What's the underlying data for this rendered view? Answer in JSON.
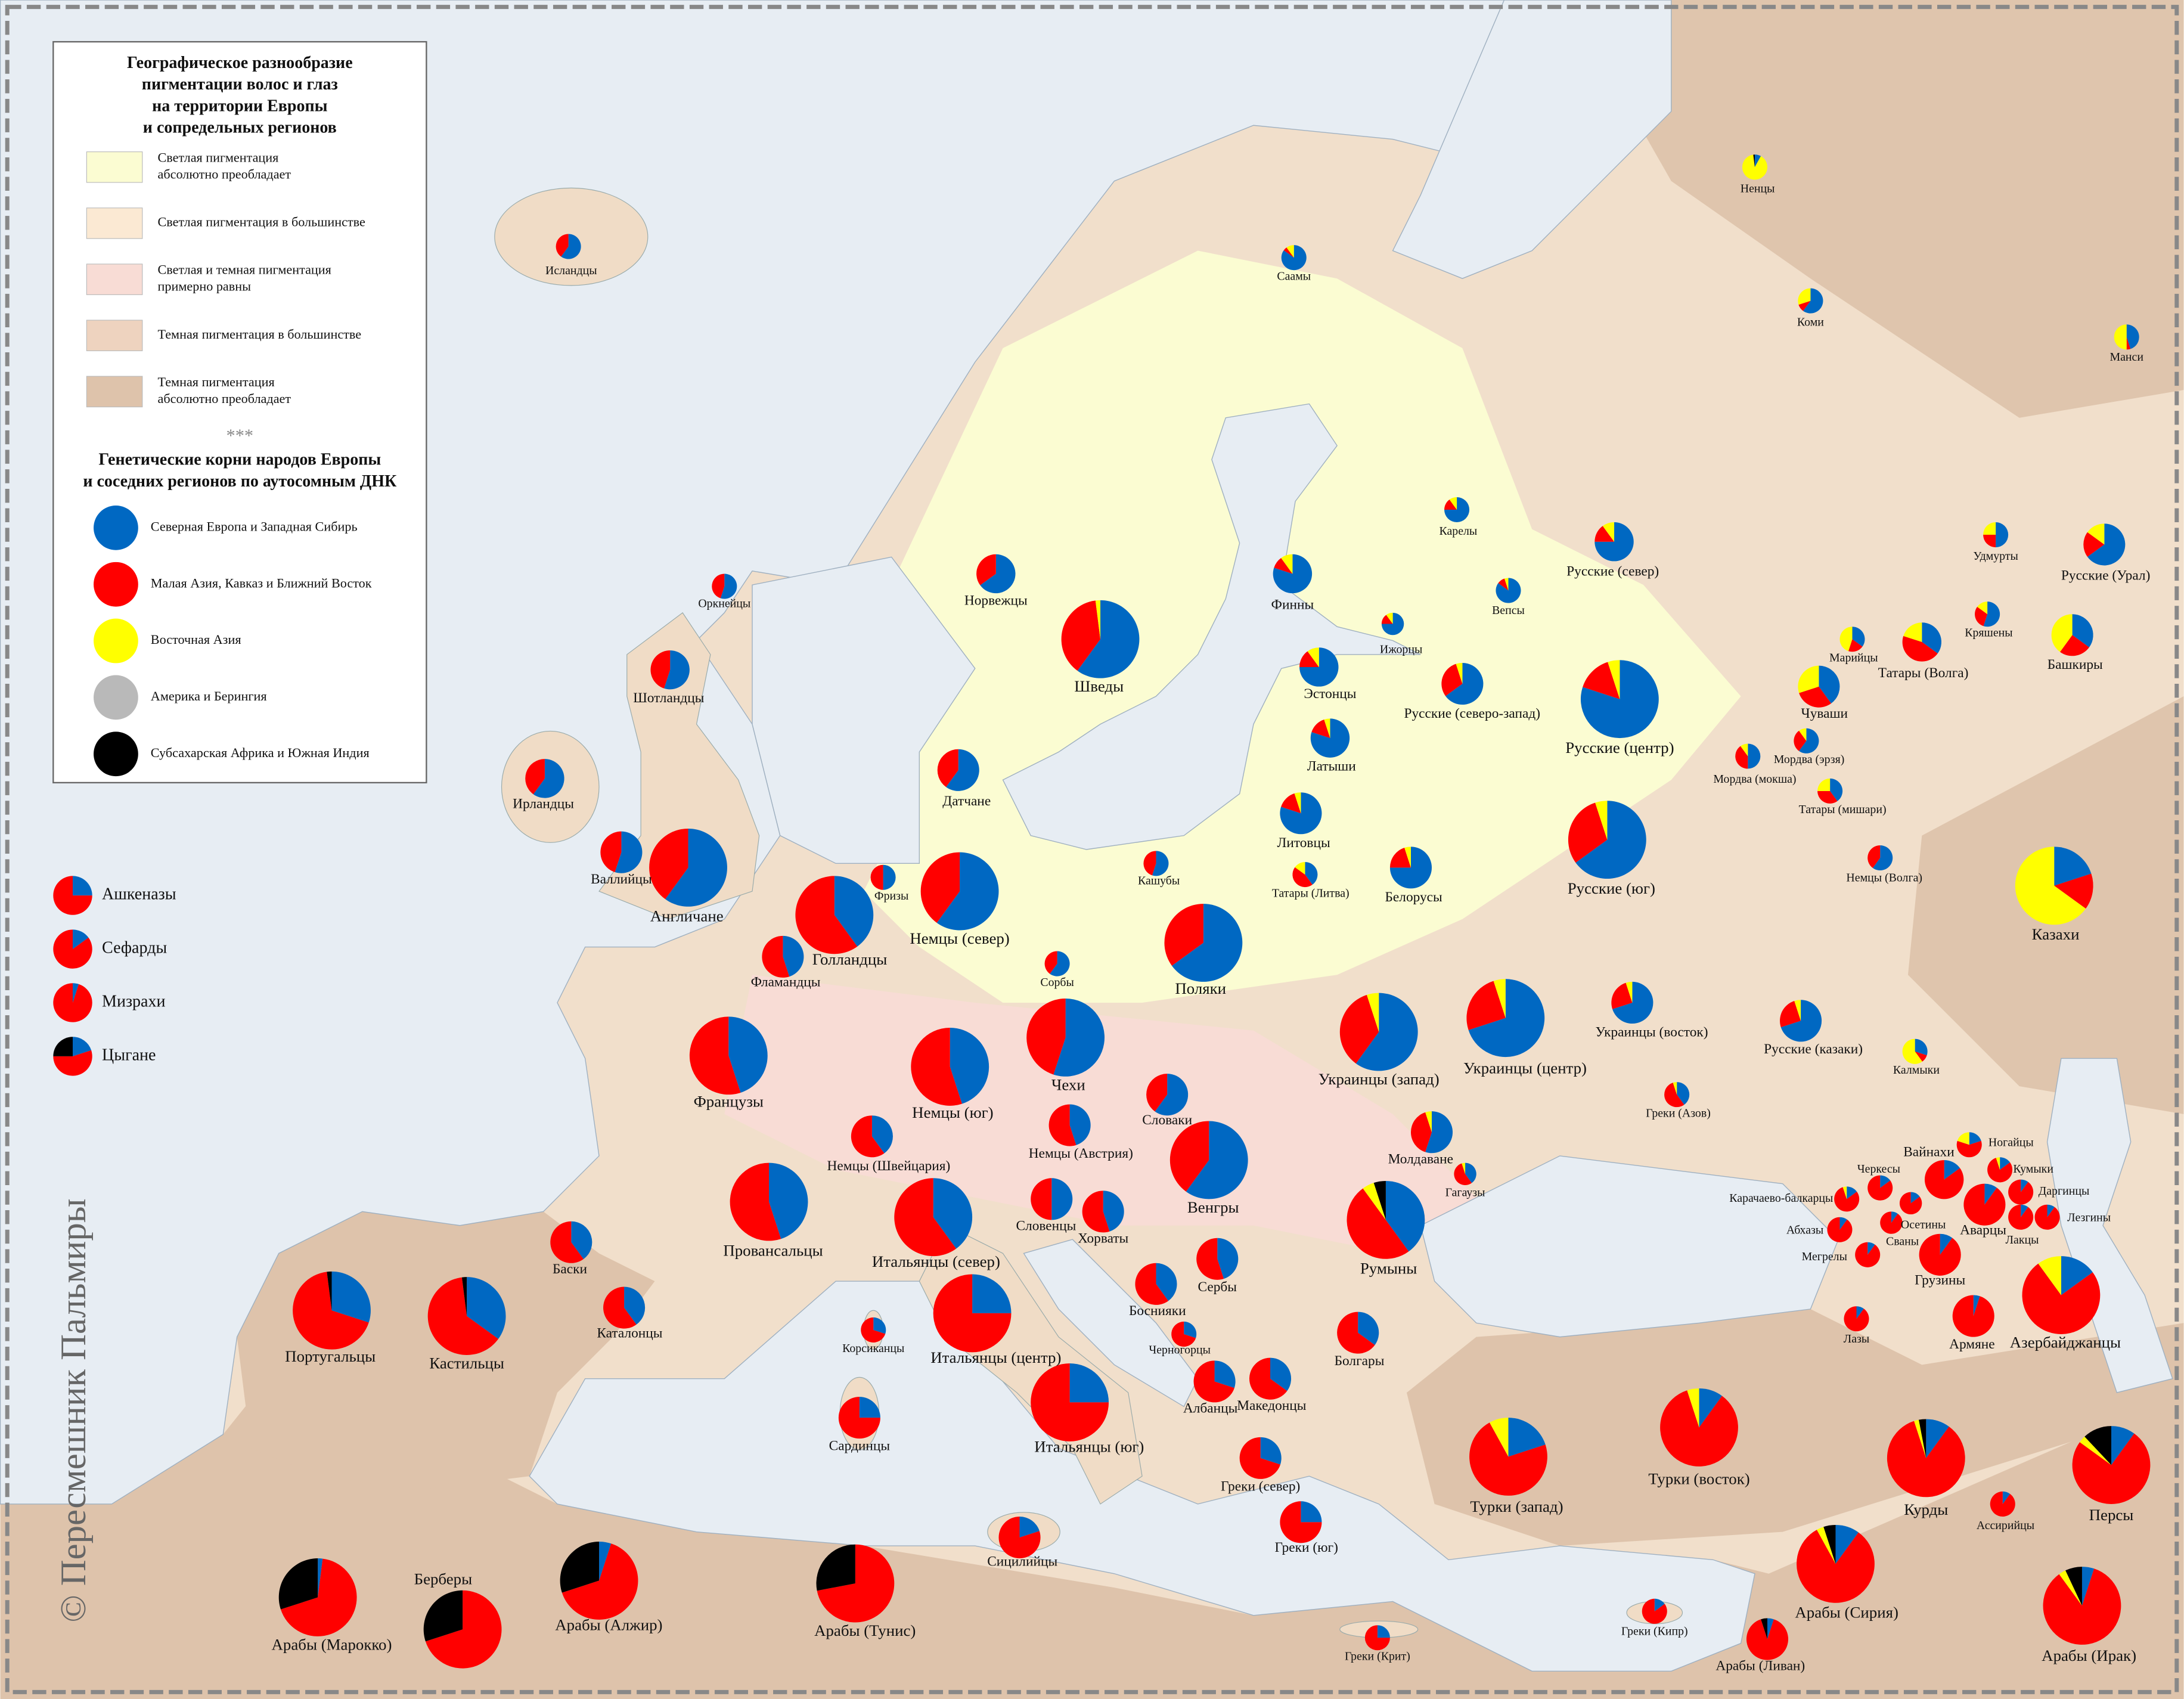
{
  "legend": {
    "title": [
      "Географическое разнообразие",
      "пигментации волос и глаз",
      "на территории Европы",
      "и сопредельных регионов"
    ],
    "pigmentation": [
      {
        "label": [
          "Светлая пигментация",
          "абсолютно преобладает"
        ],
        "color": "#fbfcd2"
      },
      {
        "label": [
          "Светлая пигментация в большинстве"
        ],
        "color": "#fbe9d3"
      },
      {
        "label": [
          "Светлая и темная пигментация",
          "примерно равны"
        ],
        "color": "#f8dcd5"
      },
      {
        "label": [
          "Темная пигментация в большинстве"
        ],
        "color": "#eed3bf"
      },
      {
        "label": [
          "Темная пигментация",
          "абсолютно преобладает"
        ],
        "color": "#dec3ab"
      }
    ],
    "separator": "***",
    "genetics_title": [
      "Генетические корни народов Европы",
      "и соседних регионов по аутосомным ДНК"
    ],
    "components": [
      {
        "label": "Северная Европа и Западная Сибирь",
        "color": "#0068c2"
      },
      {
        "label": "Малая Азия, Кавказ и Ближний Восток",
        "color": "#ff0000"
      },
      {
        "label": "Восточная Азия",
        "color": "#ffff00"
      },
      {
        "label": "Америка и Берингия",
        "color": "#b9b9b9"
      },
      {
        "label": "Субсахарская Африка и Южная Индия",
        "color": "#000000"
      }
    ]
  },
  "groups": [
    {
      "name": "Исландцы",
      "values": [
        60,
        40,
        0,
        0,
        0
      ]
    },
    {
      "name": "Саамы",
      "values": [
        85,
        5,
        10,
        0,
        0
      ]
    },
    {
      "name": "Ненцы",
      "values": [
        8,
        0,
        90,
        0,
        2
      ]
    },
    {
      "name": "Коми",
      "values": [
        60,
        10,
        30,
        0,
        0
      ]
    },
    {
      "name": "Манси",
      "values": [
        45,
        5,
        50,
        0,
        0
      ]
    },
    {
      "name": "Карелы",
      "values": [
        75,
        15,
        10,
        0,
        0
      ]
    },
    {
      "name": "Вепсы",
      "values": [
        85,
        10,
        5,
        0,
        0
      ]
    },
    {
      "name": "Русские (север)",
      "values": [
        75,
        15,
        10,
        0,
        0
      ]
    },
    {
      "name": "Удмурты",
      "values": [
        50,
        25,
        25,
        0,
        0
      ]
    },
    {
      "name": "Русские (Урал)",
      "values": [
        65,
        20,
        15,
        0,
        0
      ]
    },
    {
      "name": "Оркнейцы",
      "values": [
        55,
        45,
        0,
        0,
        0
      ]
    },
    {
      "name": "Норвежцы",
      "values": [
        65,
        35,
        0,
        0,
        0
      ]
    },
    {
      "name": "Финны",
      "values": [
        80,
        10,
        10,
        0,
        0
      ]
    },
    {
      "name": "Ижорцы",
      "values": [
        75,
        15,
        10,
        0,
        0
      ]
    },
    {
      "name": "Шведы",
      "values": [
        60,
        38,
        2,
        0,
        0
      ]
    },
    {
      "name": "Кряшены",
      "values": [
        55,
        30,
        15,
        0,
        0
      ]
    },
    {
      "name": "Башкиры",
      "values": [
        35,
        25,
        40,
        0,
        0
      ]
    },
    {
      "name": "Марийцы",
      "values": [
        35,
        20,
        45,
        0,
        0
      ]
    },
    {
      "name": "Татары (Волга)",
      "values": [
        35,
        45,
        20,
        0,
        0
      ]
    },
    {
      "name": "Шотландцы",
      "values": [
        55,
        45,
        0,
        0,
        0
      ]
    },
    {
      "name": "Эстонцы",
      "values": [
        75,
        15,
        10,
        0,
        0
      ]
    },
    {
      "name": "Русские (северо-запад)",
      "values": [
        65,
        30,
        5,
        0,
        0
      ]
    },
    {
      "name": "Русские (центр)",
      "values": [
        80,
        15,
        5,
        0,
        0
      ]
    },
    {
      "name": "Чуваши",
      "values": [
        40,
        30,
        30,
        0,
        0
      ]
    },
    {
      "name": "Латыши",
      "values": [
        80,
        15,
        5,
        0,
        0
      ]
    },
    {
      "name": "Мордва (эрзя)",
      "values": [
        60,
        30,
        10,
        0,
        0
      ]
    },
    {
      "name": "Мордва (мокша)",
      "values": [
        50,
        40,
        10,
        0,
        0
      ]
    },
    {
      "name": "Датчане",
      "values": [
        60,
        40,
        0,
        0,
        0
      ]
    },
    {
      "name": "Ирландцы",
      "values": [
        60,
        40,
        0,
        0,
        0
      ]
    },
    {
      "name": "Татары (мишари)",
      "values": [
        40,
        35,
        25,
        0,
        0
      ]
    },
    {
      "name": "Литовцы",
      "values": [
        80,
        15,
        5,
        0,
        0
      ]
    },
    {
      "name": "Русские (юг)",
      "values": [
        65,
        30,
        5,
        0,
        0
      ]
    },
    {
      "name": "Валлийцы",
      "values": [
        55,
        45,
        0,
        0,
        0
      ]
    },
    {
      "name": "Англичане",
      "values": [
        60,
        40,
        0,
        0,
        0
      ]
    },
    {
      "name": "Фризы",
      "values": [
        50,
        50,
        0,
        0,
        0
      ]
    },
    {
      "name": "Немцы (север)",
      "values": [
        60,
        40,
        0,
        0,
        0
      ]
    },
    {
      "name": "Кашубы",
      "values": [
        55,
        45,
        0,
        0,
        0
      ]
    },
    {
      "name": "Татары (Литва)",
      "values": [
        40,
        45,
        15,
        0,
        0
      ]
    },
    {
      "name": "Белорусы",
      "values": [
        75,
        20,
        5,
        0,
        0
      ]
    },
    {
      "name": "Немцы (Волга)",
      "values": [
        60,
        40,
        0,
        0,
        0
      ]
    },
    {
      "name": "Казахи",
      "values": [
        20,
        15,
        65,
        0,
        0
      ]
    },
    {
      "name": "Голландцы",
      "values": [
        40,
        60,
        0,
        0,
        0
      ]
    },
    {
      "name": "Фламандцы",
      "values": [
        45,
        55,
        0,
        0,
        0
      ]
    },
    {
      "name": "Сорбы",
      "values": [
        60,
        40,
        0,
        0,
        0
      ]
    },
    {
      "name": "Поляки",
      "values": [
        65,
        35,
        0,
        0,
        0
      ]
    },
    {
      "name": "Украинцы (восток)",
      "values": [
        70,
        25,
        5,
        0,
        0
      ]
    },
    {
      "name": "Французы",
      "values": [
        45,
        55,
        0,
        0,
        0
      ]
    },
    {
      "name": "Чехи",
      "values": [
        55,
        45,
        0,
        0,
        0
      ]
    },
    {
      "name": "Немцы (юг)",
      "values": [
        45,
        55,
        0,
        0,
        0
      ]
    },
    {
      "name": "Украинцы (запад)",
      "values": [
        60,
        35,
        5,
        0,
        0
      ]
    },
    {
      "name": "Украинцы (центр)",
      "values": [
        70,
        25,
        5,
        0,
        0
      ]
    },
    {
      "name": "Русские (казаки)",
      "values": [
        70,
        25,
        5,
        0,
        0
      ]
    },
    {
      "name": "Калмыки",
      "values": [
        30,
        10,
        60,
        0,
        0
      ]
    },
    {
      "name": "Словаки",
      "values": [
        60,
        40,
        0,
        0,
        0
      ]
    },
    {
      "name": "Греки (Азов)",
      "values": [
        40,
        55,
        5,
        0,
        0
      ]
    },
    {
      "name": "Немцы (Швейцария)",
      "values": [
        40,
        60,
        0,
        0,
        0
      ]
    },
    {
      "name": "Немцы (Австрия)",
      "values": [
        45,
        55,
        0,
        0,
        0
      ]
    },
    {
      "name": "Венгры",
      "values": [
        60,
        40,
        0,
        0,
        0
      ]
    },
    {
      "name": "Молдаване",
      "values": [
        55,
        40,
        5,
        0,
        0
      ]
    },
    {
      "name": "Провансальцы",
      "values": [
        45,
        55,
        0,
        0,
        0
      ]
    },
    {
      "name": "Итальянцы (север)",
      "values": [
        40,
        60,
        0,
        0,
        0
      ]
    },
    {
      "name": "Словенцы",
      "values": [
        50,
        50,
        0,
        0,
        0
      ]
    },
    {
      "name": "Хорваты",
      "values": [
        45,
        55,
        0,
        0,
        0
      ]
    },
    {
      "name": "Гагаузы",
      "values": [
        40,
        55,
        5,
        0,
        0
      ]
    },
    {
      "name": "Румыны",
      "values": [
        40,
        50,
        5,
        0,
        5
      ]
    },
    {
      "name": "Баски",
      "values": [
        40,
        60,
        0,
        0,
        0
      ]
    },
    {
      "name": "Португальцы",
      "values": [
        30,
        68,
        0,
        0,
        2
      ]
    },
    {
      "name": "Кастильцы",
      "values": [
        35,
        63,
        0,
        0,
        2
      ]
    },
    {
      "name": "Каталонцы",
      "values": [
        40,
        60,
        0,
        0,
        0
      ]
    },
    {
      "name": "Боснияки",
      "values": [
        40,
        60,
        0,
        0,
        0
      ]
    },
    {
      "name": "Сербы",
      "values": [
        45,
        55,
        0,
        0,
        0
      ]
    },
    {
      "name": "Итальянцы (центр)",
      "values": [
        25,
        75,
        0,
        0,
        0
      ]
    },
    {
      "name": "Корсиканцы",
      "values": [
        30,
        70,
        0,
        0,
        0
      ]
    },
    {
      "name": "Черногорцы",
      "values": [
        30,
        70,
        0,
        0,
        0
      ]
    },
    {
      "name": "Болгары",
      "values": [
        35,
        65,
        0,
        0,
        0
      ]
    },
    {
      "name": "Сардинцы",
      "values": [
        25,
        75,
        0,
        0,
        0
      ]
    },
    {
      "name": "Албанцы",
      "values": [
        30,
        70,
        0,
        0,
        0
      ]
    },
    {
      "name": "Македонцы",
      "values": [
        35,
        65,
        0,
        0,
        0
      ]
    },
    {
      "name": "Итальянцы (юг)",
      "values": [
        25,
        75,
        0,
        0,
        0
      ]
    },
    {
      "name": "Греки (север)",
      "values": [
        30,
        70,
        0,
        0,
        0
      ]
    },
    {
      "name": "Греки (юг)",
      "values": [
        25,
        75,
        0,
        0,
        0
      ]
    },
    {
      "name": "Сицилийцы",
      "values": [
        20,
        80,
        0,
        0,
        0
      ]
    },
    {
      "name": "Греки (Крит)",
      "values": [
        25,
        75,
        0,
        0,
        0
      ]
    },
    {
      "name": "Греки (Кипр)",
      "values": [
        15,
        85,
        0,
        0,
        0
      ]
    },
    {
      "name": "Арабы (Ливан)",
      "values": [
        5,
        90,
        0,
        0,
        5
      ]
    },
    {
      "name": "Арабы (Сирия)",
      "values": [
        10,
        82,
        3,
        0,
        5
      ]
    },
    {
      "name": "Арабы (Ирак)",
      "values": [
        5,
        85,
        3,
        0,
        7
      ]
    },
    {
      "name": "Ассирийцы",
      "values": [
        10,
        90,
        0,
        0,
        0
      ]
    },
    {
      "name": "Турки (запад)",
      "values": [
        20,
        72,
        8,
        0,
        0
      ]
    },
    {
      "name": "Турки (восток)",
      "values": [
        10,
        85,
        5,
        0,
        0
      ]
    },
    {
      "name": "Курды",
      "values": [
        10,
        85,
        2,
        0,
        3
      ]
    },
    {
      "name": "Персы",
      "values": [
        10,
        75,
        3,
        0,
        12
      ]
    },
    {
      "name": "Армяне",
      "values": [
        5,
        95,
        0,
        0,
        0
      ]
    },
    {
      "name": "Азербайджанцы",
      "values": [
        15,
        75,
        10,
        0,
        0
      ]
    },
    {
      "name": "Лазы",
      "values": [
        10,
        90,
        0,
        0,
        0
      ]
    },
    {
      "name": "Грузины",
      "values": [
        10,
        90,
        0,
        0,
        0
      ]
    },
    {
      "name": "Мегрелы",
      "values": [
        10,
        90,
        0,
        0,
        0
      ]
    },
    {
      "name": "Абхазы",
      "values": [
        10,
        90,
        0,
        0,
        0
      ]
    },
    {
      "name": "Сваны",
      "values": [
        10,
        90,
        0,
        0,
        0
      ]
    },
    {
      "name": "Осетины",
      "values": [
        15,
        85,
        0,
        0,
        0
      ]
    },
    {
      "name": "Карачаево-балкарцы",
      "values": [
        15,
        80,
        5,
        0,
        0
      ]
    },
    {
      "name": "Черкесы",
      "values": [
        15,
        85,
        0,
        0,
        0
      ]
    },
    {
      "name": "Вайнахи",
      "values": [
        15,
        85,
        0,
        0,
        0
      ]
    },
    {
      "name": "Ногайцы",
      "values": [
        20,
        60,
        20,
        0,
        0
      ]
    },
    {
      "name": "Кумыки",
      "values": [
        15,
        80,
        5,
        0,
        0
      ]
    },
    {
      "name": "Даргинцы",
      "values": [
        10,
        90,
        0,
        0,
        0
      ]
    },
    {
      "name": "Аварцы",
      "values": [
        10,
        90,
        0,
        0,
        0
      ]
    },
    {
      "name": "Лакцы",
      "values": [
        10,
        90,
        0,
        0,
        0
      ]
    },
    {
      "name": "Лезгины",
      "values": [
        10,
        90,
        0,
        0,
        0
      ]
    },
    {
      "name": "Арабы (Марокко)",
      "values": [
        2,
        68,
        0,
        0,
        30
      ]
    },
    {
      "name": "Берберы",
      "values": [
        0,
        70,
        0,
        0,
        30
      ]
    },
    {
      "name": "Арабы (Алжир)",
      "values": [
        5,
        65,
        0,
        0,
        30
      ]
    },
    {
      "name": "Арабы (Тунис)",
      "values": [
        0,
        72,
        0,
        0,
        28
      ]
    }
  ],
  "diaspora": [
    {
      "name": "Ашкеназы",
      "values": [
        25,
        75,
        0,
        0,
        0
      ]
    },
    {
      "name": "Сефарды",
      "values": [
        15,
        85,
        0,
        0,
        0
      ]
    },
    {
      "name": "Мизрахи",
      "values": [
        5,
        95,
        0,
        0,
        0
      ]
    },
    {
      "name": "Цыгане",
      "values": [
        20,
        55,
        0,
        0,
        25
      ]
    }
  ],
  "copyright": "© Пересмешник Пальмиры"
}
